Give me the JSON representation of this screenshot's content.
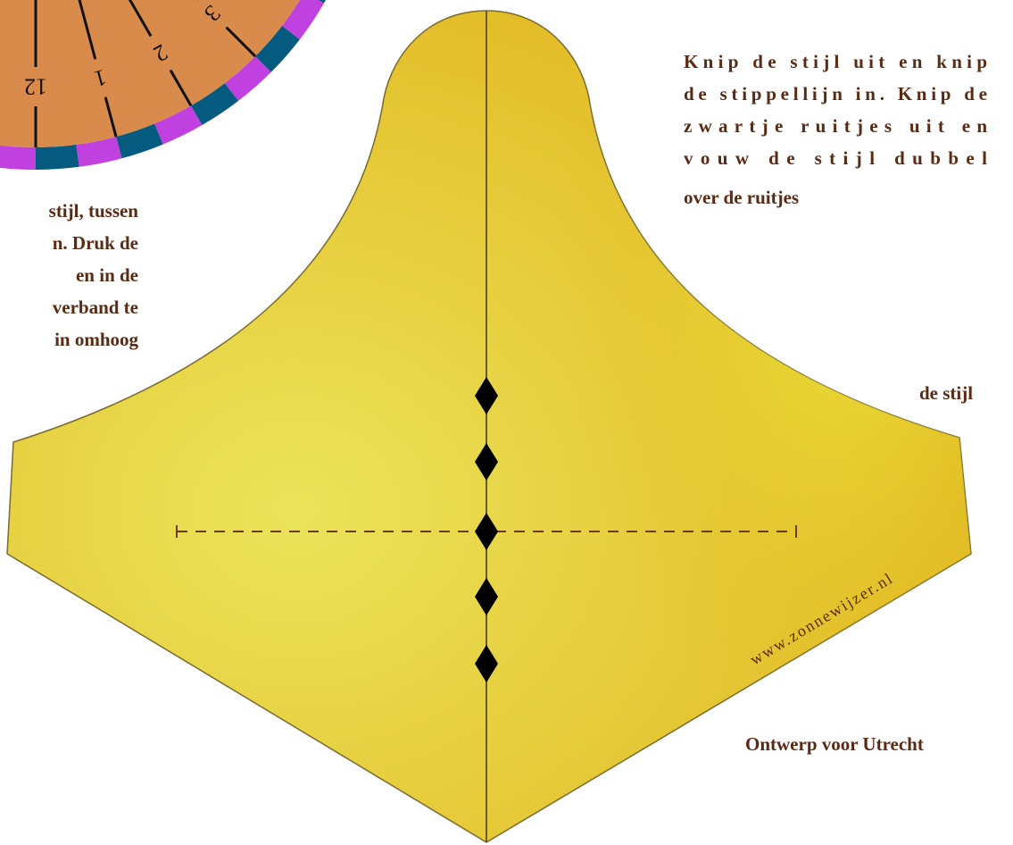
{
  "dial": {
    "hour_labels": [
      "12",
      "1",
      "2",
      "3"
    ]
  },
  "left_text": {
    "lines": [
      "stijl, tussen",
      "n. Druk de",
      "en in de",
      "verband te",
      "in omhoog"
    ]
  },
  "right_text": {
    "lines": [
      "Knip de stijl uit en knip",
      "de stippellijn in. Knip de",
      "zwartje ruitjes uit en",
      "vouw de stijl dubbel",
      "over de ruitjes"
    ]
  },
  "side_label": "de stijl",
  "footer": "Ontwerp voor Utrecht",
  "watermark": "www.zonnewijzer.nl"
}
